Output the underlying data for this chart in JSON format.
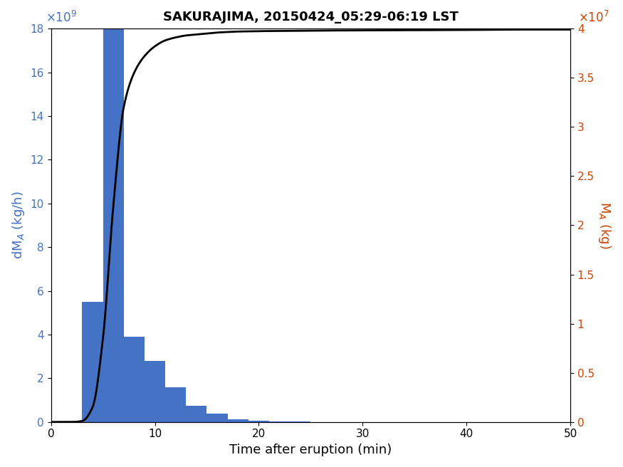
{
  "title": "SAKURAJIMA, 20150424_05:29-06:19 LST",
  "xlabel": "Time after eruption (min)",
  "bar_color": "#4472C4",
  "line_color": "#000000",
  "left_axis_color": "#4472C4",
  "right_axis_color": "#CC4400",
  "xlim": [
    0,
    50
  ],
  "ylim_left": [
    0,
    18000000000.0
  ],
  "ylim_right": [
    0,
    40000000.0
  ],
  "bar_centers": [
    4,
    6,
    8,
    10,
    12,
    14,
    16,
    18,
    20,
    22,
    24
  ],
  "bar_heights": [
    5500000000.0,
    18000000000.0,
    3900000000.0,
    2800000000.0,
    1600000000.0,
    750000000.0,
    380000000.0,
    120000000.0,
    70000000.0,
    30000000.0,
    10000000.0
  ],
  "bar_width": 2.0,
  "cumline_times": [
    0,
    1,
    2,
    3,
    4,
    5,
    6,
    7,
    8,
    9,
    10,
    11,
    12,
    13,
    14,
    15,
    16,
    17,
    18,
    19,
    20,
    22,
    24,
    26,
    30,
    35,
    40,
    45,
    50
  ],
  "cumline_values": [
    0,
    0,
    0,
    100000.0,
    1500000.0,
    8500000.0,
    22000000.0,
    32000000.0,
    35500000.0,
    37200000.0,
    38200000.0,
    38800000.0,
    39100000.0,
    39300000.0,
    39400000.0,
    39500000.0,
    39600000.0,
    39650000.0,
    39700000.0,
    39720000.0,
    39740000.0,
    39760000.0,
    39780000.0,
    39800000.0,
    39820000.0,
    39840000.0,
    39860000.0,
    39900000.0,
    39900000.0
  ],
  "xticks": [
    0,
    10,
    20,
    30,
    40,
    50
  ],
  "yticks_left": [
    0,
    2000000000.0,
    4000000000.0,
    6000000000.0,
    8000000000.0,
    10000000000.0,
    12000000000.0,
    14000000000.0,
    16000000000.0,
    18000000000.0
  ],
  "yticks_right": [
    0,
    5000000.0,
    10000000.0,
    15000000.0,
    20000000.0,
    25000000.0,
    30000000.0,
    35000000.0,
    40000000.0
  ],
  "ytick_labels_left": [
    "0",
    "2",
    "4",
    "6",
    "8",
    "10",
    "12",
    "14",
    "16",
    "18"
  ],
  "ytick_labels_right": [
    "0",
    "0.5",
    "1",
    "1.5",
    "2",
    "2.5",
    "3",
    "3.5",
    "4"
  ],
  "figsize": [
    8.75,
    6.56
  ],
  "dpi": 100
}
